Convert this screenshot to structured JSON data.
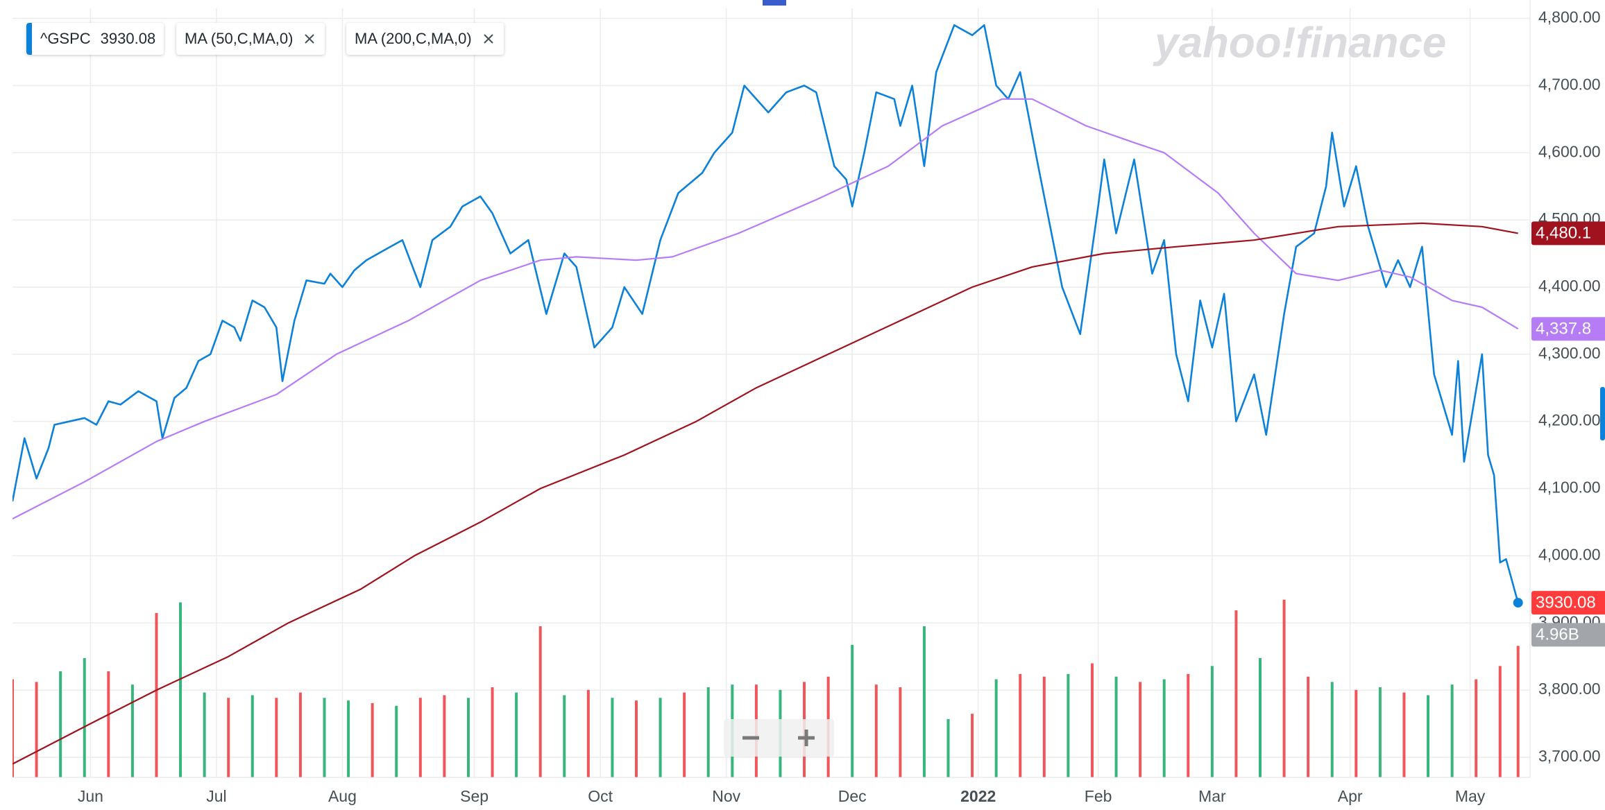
{
  "chart_data": {
    "type": "line",
    "watermark": "yahoo!finance",
    "xlim": [
      0,
      253
    ],
    "xticks": [
      {
        "value": 13,
        "label": "Jun"
      },
      {
        "value": 34,
        "label": "Jul"
      },
      {
        "value": 55,
        "label": "Aug"
      },
      {
        "value": 77,
        "label": "Sep"
      },
      {
        "value": 98,
        "label": "Oct"
      },
      {
        "value": 119,
        "label": "Nov"
      },
      {
        "value": 140,
        "label": "Dec"
      },
      {
        "value": 161,
        "label": "2022"
      },
      {
        "value": 181,
        "label": "Feb"
      },
      {
        "value": 200,
        "label": "Mar"
      },
      {
        "value": 223,
        "label": "Apr"
      },
      {
        "value": 243,
        "label": "May"
      }
    ],
    "ylim": [
      3670,
      4815
    ],
    "yticks": [
      {
        "value": 3700,
        "label": "3,700.00"
      },
      {
        "value": 3800,
        "label": "3,800.00"
      },
      {
        "value": 3900,
        "label": "3,900.00"
      },
      {
        "value": 4000,
        "label": "4,000.00"
      },
      {
        "value": 4100,
        "label": "4,100.00"
      },
      {
        "value": 4200,
        "label": "4,200.00"
      },
      {
        "value": 4300,
        "label": "4,300.00"
      },
      {
        "value": 4400,
        "label": "4,400.00"
      },
      {
        "value": 4500,
        "label": "4,500.00"
      },
      {
        "value": 4600,
        "label": "4,600.00"
      },
      {
        "value": 4700,
        "label": "4,700.00"
      },
      {
        "value": 4800,
        "label": "4,800.00"
      }
    ],
    "y2lim": [
      0,
      29
    ],
    "grid": true,
    "series": [
      {
        "name": "^GSPC",
        "color": "#0b81d9",
        "label_color": "#ff3b3b",
        "x": [
          0,
          2,
          4,
          6,
          7,
          12,
          14,
          16,
          18,
          21,
          24,
          25,
          27,
          29,
          31,
          33,
          35,
          37,
          38,
          40,
          42,
          44,
          45,
          47,
          49,
          52,
          53,
          55,
          57,
          59,
          63,
          65,
          68,
          70,
          73,
          75,
          78,
          80,
          83,
          86,
          89,
          92,
          94,
          97,
          100,
          102,
          105,
          108,
          111,
          115,
          117,
          120,
          122,
          126,
          129,
          132,
          134,
          137,
          139,
          140,
          142,
          144,
          147,
          148,
          150,
          152,
          154,
          157,
          160,
          162,
          164,
          166,
          168,
          171,
          175,
          178,
          181,
          182,
          184,
          187,
          190,
          192,
          194,
          196,
          198,
          200,
          202,
          204,
          207,
          209,
          212,
          214,
          217,
          219,
          220,
          222,
          224,
          226,
          229,
          231,
          233,
          235,
          237,
          240,
          241,
          242,
          245,
          246,
          247,
          248,
          249,
          251
        ],
        "values": [
          4081,
          4175,
          4115,
          4160,
          4195,
          4205,
          4195,
          4230,
          4225,
          4245,
          4230,
          4175,
          4235,
          4250,
          4290,
          4300,
          4350,
          4340,
          4320,
          4380,
          4370,
          4340,
          4260,
          4350,
          4410,
          4405,
          4420,
          4400,
          4425,
          4440,
          4460,
          4470,
          4400,
          4470,
          4490,
          4520,
          4535,
          4510,
          4450,
          4470,
          4360,
          4450,
          4430,
          4310,
          4340,
          4400,
          4360,
          4470,
          4540,
          4570,
          4600,
          4630,
          4700,
          4660,
          4690,
          4700,
          4690,
          4580,
          4560,
          4520,
          4600,
          4690,
          4680,
          4640,
          4700,
          4580,
          4720,
          4790,
          4775,
          4790,
          4700,
          4680,
          4720,
          4580,
          4400,
          4330,
          4520,
          4590,
          4480,
          4590,
          4420,
          4470,
          4300,
          4230,
          4380,
          4310,
          4390,
          4200,
          4270,
          4180,
          4360,
          4460,
          4480,
          4550,
          4630,
          4520,
          4580,
          4490,
          4400,
          4440,
          4400,
          4460,
          4270,
          4180,
          4290,
          4140,
          4300,
          4150,
          4120,
          3990,
          3995,
          3930.08
        ]
      },
      {
        "name": "MA (50,C,MA,0)",
        "color": "#b57cf6",
        "label_color": "#b57cf6",
        "x": [
          0,
          12,
          24,
          32,
          44,
          54,
          66,
          78,
          88,
          94,
          104,
          110,
          121,
          134,
          146,
          155,
          165,
          170,
          179,
          187,
          192,
          201,
          207,
          214,
          221,
          228,
          233,
          240,
          245,
          251
        ],
        "values": [
          4055,
          4110,
          4170,
          4200,
          4240,
          4300,
          4350,
          4410,
          4440,
          4445,
          4440,
          4445,
          4480,
          4530,
          4580,
          4640,
          4680,
          4680,
          4640,
          4615,
          4600,
          4540,
          4480,
          4420,
          4410,
          4425,
          4415,
          4380,
          4370,
          4337.8
        ],
        "value_labels": [
          null,
          null,
          null,
          null,
          null,
          null,
          null,
          null,
          null,
          null,
          null,
          null,
          null,
          null,
          null,
          null,
          null,
          null,
          null,
          null,
          null,
          null,
          null,
          null,
          null,
          null,
          null,
          null,
          null,
          "4,337.8"
        ]
      },
      {
        "name": "MA (200,C,MA,0)",
        "color": "#a0121d",
        "label_color": "#a0121d",
        "x": [
          0,
          13,
          24,
          36,
          46,
          58,
          67,
          78,
          88,
          102,
          114,
          124,
          136,
          148,
          160,
          170,
          182,
          194,
          207,
          221,
          235,
          245,
          251
        ],
        "values": [
          3690,
          3750,
          3800,
          3850,
          3900,
          3950,
          4000,
          4050,
          4100,
          4150,
          4200,
          4250,
          4300,
          4350,
          4400,
          4430,
          4450,
          4460,
          4470,
          4490,
          4495,
          4490,
          4480.1
        ],
        "value_labels": [
          null,
          null,
          null,
          null,
          null,
          null,
          null,
          null,
          null,
          null,
          null,
          null,
          null,
          null,
          null,
          null,
          null,
          null,
          null,
          null,
          null,
          null,
          "4,480.1"
        ]
      },
      {
        "type": "bar",
        "axis": "y2",
        "label_color": "#a2a6ab",
        "x": [
          0,
          4,
          8,
          12,
          16,
          20,
          24,
          28,
          32,
          36,
          40,
          44,
          48,
          52,
          56,
          60,
          64,
          68,
          72,
          76,
          80,
          84,
          88,
          92,
          96,
          100,
          104,
          108,
          112,
          116,
          120,
          124,
          128,
          132,
          136,
          140,
          144,
          148,
          152,
          156,
          160,
          164,
          168,
          172,
          176,
          180,
          184,
          188,
          192,
          196,
          200,
          204,
          208,
          212,
          216,
          220,
          224,
          228,
          232,
          236,
          240,
          244,
          248,
          251
        ],
        "values": [
          3.7,
          3.6,
          4.0,
          4.5,
          4.0,
          3.5,
          6.2,
          6.6,
          3.2,
          3.0,
          3.1,
          3.0,
          3.2,
          3.0,
          2.9,
          2.8,
          2.7,
          3.0,
          3.1,
          3.0,
          3.4,
          3.2,
          5.7,
          3.1,
          3.3,
          3.0,
          2.9,
          3.0,
          3.2,
          3.4,
          3.5,
          3.5,
          3.3,
          3.6,
          3.8,
          5.0,
          3.5,
          3.4,
          5.7,
          2.2,
          2.4,
          3.7,
          3.9,
          3.8,
          3.9,
          4.3,
          3.8,
          3.6,
          3.7,
          3.9,
          4.2,
          6.3,
          4.5,
          6.7,
          3.8,
          3.6,
          3.3,
          3.4,
          3.2,
          3.1,
          3.5,
          3.7,
          4.2,
          4.96
        ],
        "value_labels": [
          null,
          null,
          null,
          null,
          null,
          null,
          null,
          null,
          null,
          null,
          null,
          null,
          null,
          null,
          null,
          null,
          null,
          null,
          null,
          null,
          null,
          null,
          null,
          null,
          null,
          null,
          null,
          null,
          null,
          null,
          null,
          null,
          null,
          null,
          null,
          null,
          null,
          null,
          null,
          null,
          null,
          null,
          null,
          null,
          null,
          null,
          null,
          null,
          null,
          null,
          null,
          null,
          null,
          null,
          null,
          null,
          null,
          null,
          null,
          null,
          null,
          null,
          null,
          "4.96B"
        ],
        "colors": [
          "#f0555a",
          "#f0555a",
          "#37b57d",
          "#37b57d",
          "#f0555a",
          "#37b57d",
          "#f0555a",
          "#37b57d",
          "#37b57d",
          "#f0555a",
          "#37b57d",
          "#f0555a",
          "#f0555a",
          "#37b57d",
          "#37b57d",
          "#f0555a",
          "#37b57d",
          "#f0555a",
          "#f0555a",
          "#37b57d",
          "#f0555a",
          "#37b57d",
          "#f0555a",
          "#37b57d",
          "#f0555a",
          "#37b57d",
          "#f0555a",
          "#37b57d",
          "#f0555a",
          "#37b57d",
          "#37b57d",
          "#f0555a",
          "#37b57d",
          "#f0555a",
          "#f0555a",
          "#37b57d",
          "#f0555a",
          "#f0555a",
          "#37b57d",
          "#37b57d",
          "#f0555a",
          "#37b57d",
          "#f0555a",
          "#f0555a",
          "#37b57d",
          "#f0555a",
          "#37b57d",
          "#f0555a",
          "#37b57d",
          "#f0555a",
          "#37b57d",
          "#f0555a",
          "#37b57d",
          "#f0555a",
          "#f0555a",
          "#37b57d",
          "#f0555a",
          "#37b57d",
          "#f0555a",
          "#37b57d",
          "#37b57d",
          "#f0555a",
          "#f0555a",
          "#f0555a"
        ]
      }
    ]
  }
}
